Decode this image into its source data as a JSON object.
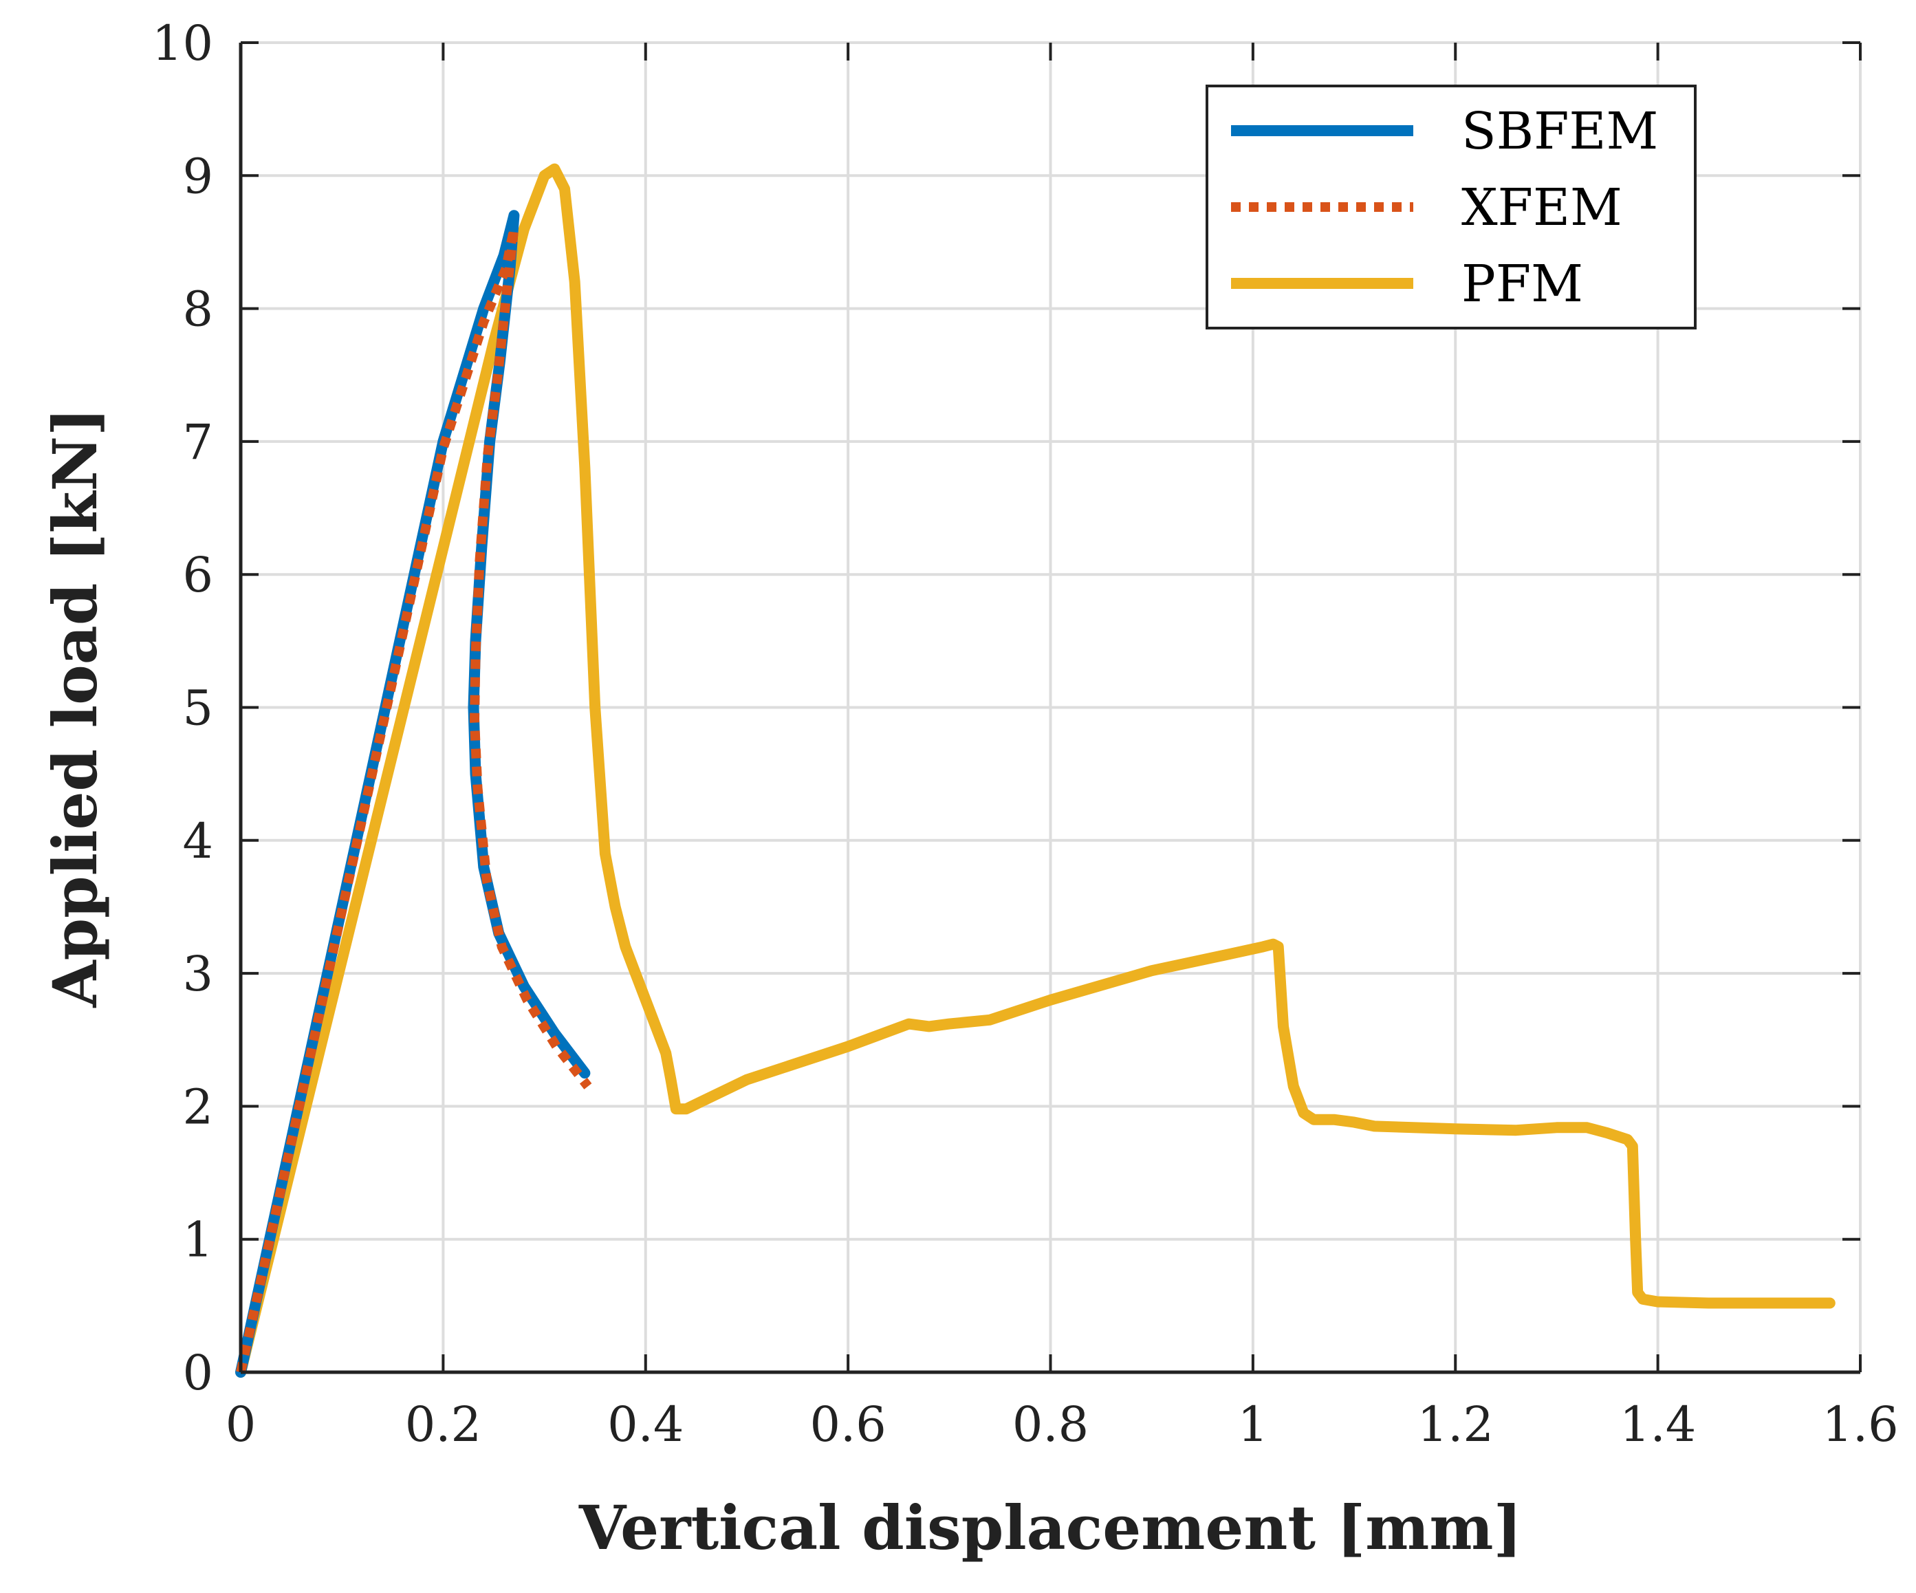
{
  "chart_data": {
    "type": "line",
    "title": "",
    "xlabel": "Vertical displacement [mm]",
    "ylabel": "Applied load [kN]",
    "xlim": [
      0,
      1.6
    ],
    "ylim": [
      0,
      10
    ],
    "grid": true,
    "legend_position": "top-right",
    "x_ticks": [
      "0",
      "0.2",
      "0.4",
      "0.6",
      "0.8",
      "1",
      "1.2",
      "1.4",
      "1.6"
    ],
    "y_ticks": [
      "0",
      "1",
      "2",
      "3",
      "4",
      "5",
      "6",
      "7",
      "8",
      "9",
      "10"
    ],
    "series": [
      {
        "name": "SBFEM",
        "color": "#0072BD",
        "style": "solid",
        "x": [
          0.0,
          0.05,
          0.1,
          0.15,
          0.2,
          0.24,
          0.26,
          0.27,
          0.266,
          0.256,
          0.246,
          0.238,
          0.232,
          0.23,
          0.232,
          0.24,
          0.255,
          0.28,
          0.31,
          0.34
        ],
        "y": [
          0.0,
          1.75,
          3.5,
          5.25,
          7.0,
          8.0,
          8.4,
          8.7,
          8.3,
          7.6,
          7.0,
          6.2,
          5.5,
          5.0,
          4.5,
          3.8,
          3.3,
          2.9,
          2.55,
          2.25
        ]
      },
      {
        "name": "XFEM",
        "color": "#D95319",
        "style": "dotted",
        "x": [
          0.0,
          0.05,
          0.1,
          0.15,
          0.2,
          0.24,
          0.262,
          0.27,
          0.264,
          0.254,
          0.244,
          0.236,
          0.232,
          0.231,
          0.234,
          0.243,
          0.258,
          0.283,
          0.312,
          0.343
        ],
        "y": [
          0.0,
          1.73,
          3.47,
          5.2,
          6.95,
          7.9,
          8.3,
          8.6,
          8.2,
          7.5,
          6.9,
          6.1,
          5.4,
          4.9,
          4.4,
          3.7,
          3.2,
          2.8,
          2.45,
          2.15
        ]
      },
      {
        "name": "PFM",
        "color": "#EDB120",
        "style": "solid",
        "x": [
          0.0,
          0.05,
          0.1,
          0.15,
          0.2,
          0.25,
          0.28,
          0.3,
          0.31,
          0.32,
          0.33,
          0.34,
          0.35,
          0.36,
          0.37,
          0.38,
          0.39,
          0.4,
          0.41,
          0.42,
          0.425,
          0.43,
          0.44,
          0.5,
          0.6,
          0.66,
          0.68,
          0.7,
          0.74,
          0.8,
          0.9,
          0.98,
          1.01,
          1.02,
          1.025,
          1.03,
          1.04,
          1.05,
          1.06,
          1.08,
          1.1,
          1.12,
          1.2,
          1.26,
          1.3,
          1.33,
          1.35,
          1.37,
          1.375,
          1.378,
          1.38,
          1.385,
          1.4,
          1.45,
          1.5,
          1.57
        ],
        "y": [
          0.0,
          1.55,
          3.1,
          4.65,
          6.2,
          7.75,
          8.6,
          9.0,
          9.05,
          8.9,
          8.2,
          6.8,
          5.0,
          3.9,
          3.5,
          3.2,
          3.0,
          2.8,
          2.6,
          2.4,
          2.2,
          1.98,
          1.98,
          2.2,
          2.45,
          2.62,
          2.6,
          2.62,
          2.65,
          2.8,
          3.02,
          3.15,
          3.2,
          3.22,
          3.2,
          2.6,
          2.15,
          1.95,
          1.9,
          1.9,
          1.88,
          1.85,
          1.83,
          1.82,
          1.84,
          1.84,
          1.8,
          1.75,
          1.7,
          1.0,
          0.6,
          0.55,
          0.53,
          0.52,
          0.52,
          0.52
        ]
      }
    ]
  }
}
